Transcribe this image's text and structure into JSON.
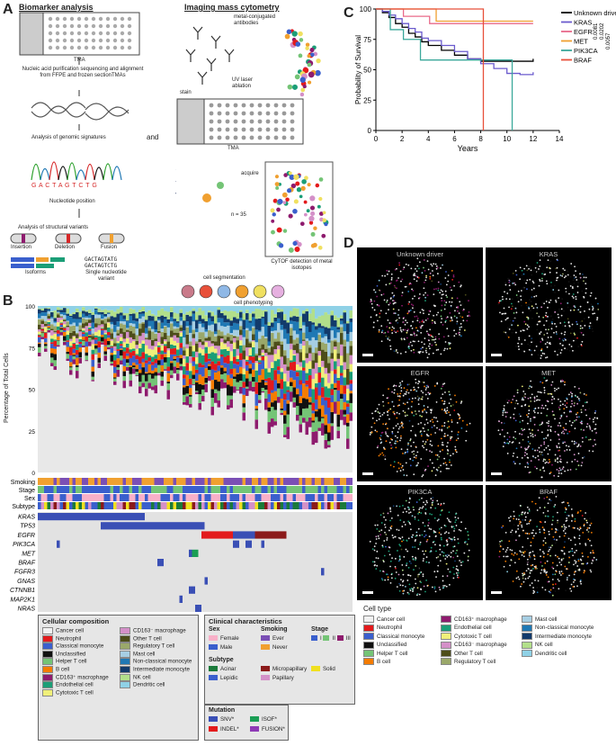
{
  "panels": {
    "a": "A",
    "b": "B",
    "c": "C",
    "d": "D"
  },
  "panelA": {
    "biomarker_title": "Biomarker analysis",
    "tma": "TMA",
    "nucleic_text": "Nucleic acid purification sequencing and alignment from FFPE and frozen sectionTMAs",
    "genomic": "Analysis of genomic signatures",
    "sequence": "G A C T A G T C T G",
    "nucleotide": "Nucleotide position",
    "structural": "Analysis of structural variants",
    "insertion": "Insertion",
    "deletion": "Deletion",
    "fusion": "Fusion",
    "isoforms": "Isoforms",
    "snv_seq1": "GACTAGTATG",
    "snv_seq2": "GACTAGTCTG",
    "snv_label": "Single nucleotide variant",
    "and": "and",
    "imc_title": "Imaging mass cytometry",
    "antibodies": "metal-conjugated antibodies",
    "stain": "stain",
    "uv": "UV laser ablation",
    "tma2": "TMA",
    "acquire": "acquire",
    "n35": "n = 35",
    "cytof": "CyTOF detection of metal isotopes",
    "segmentation": "cell segmentation",
    "phenotyping": "cell phenotyping"
  },
  "panelB": {
    "ylabel": "Percentage of Total Cells",
    "yticks": [
      "100",
      "75",
      "50",
      "25",
      "0"
    ],
    "tracks": [
      "Smoking",
      "Stage",
      "Sex",
      "Subtype"
    ],
    "genes": [
      "KRAS",
      "TP53",
      "EGFR",
      "PIK3CA",
      "MET",
      "BRAF",
      "FGFR3",
      "GNAS",
      "CTNNB1",
      "MAP2K1",
      "NRAS",
      "RAF1",
      "FGFR2"
    ],
    "legend_comp_title": "Cellular composition",
    "legend_clin_title": "Clinical characteristics",
    "sex_title": "Sex",
    "smoking_title": "Smoking",
    "stage_title": "Stage",
    "sex": [
      "Female",
      "Male"
    ],
    "smoking": [
      "Ever",
      "Never"
    ],
    "stage": [
      "I",
      "II",
      "III"
    ],
    "subtype_title": "Subtype",
    "subtype": [
      "Acinar",
      "Lepidic",
      "Micropapillary",
      "Papillary",
      "Solid"
    ],
    "mutation_title": "Mutation",
    "mutation": [
      "SNV*",
      "ISOF*",
      "INDEL*",
      "FUSION*"
    ]
  },
  "cell_types": [
    {
      "name": "Cancer cell",
      "color": "#f2f2f2"
    },
    {
      "name": "Neutrophil",
      "color": "#e31a1c"
    },
    {
      "name": "Classical monocyte",
      "color": "#3a5fcd"
    },
    {
      "name": "Unclassified",
      "color": "#111111"
    },
    {
      "name": "Helper T cell",
      "color": "#74c476"
    },
    {
      "name": "B cell",
      "color": "#f57c00"
    },
    {
      "name": "CD163⁺ macrophage",
      "color": "#8e1b6e"
    },
    {
      "name": "Endothelial cell",
      "color": "#1b9e77"
    },
    {
      "name": "Cytotoxic T cell",
      "color": "#f0f07a"
    },
    {
      "name": "CD163⁻ macrophage",
      "color": "#d490c8"
    },
    {
      "name": "Other T cell",
      "color": "#4d4d1a"
    },
    {
      "name": "Regulatory T cell",
      "color": "#9aa86a"
    },
    {
      "name": "Mast cell",
      "color": "#a6cee3"
    },
    {
      "name": "Non-classical monocyte",
      "color": "#1f78b4"
    },
    {
      "name": "Intermediate monocyte",
      "color": "#123a6b"
    },
    {
      "name": "NK cell",
      "color": "#b2df8a"
    },
    {
      "name": "Dendritic cell",
      "color": "#8fd1e6"
    }
  ],
  "chart_data": {
    "type": "line",
    "xlabel": "Years",
    "ylabel": "Probability of Survival",
    "xlim": [
      0,
      14
    ],
    "ylim": [
      0,
      100
    ],
    "xticks": [
      0,
      2,
      4,
      6,
      8,
      10,
      12,
      14
    ],
    "yticks": [
      0,
      25,
      50,
      75,
      100
    ],
    "pvalues": [
      "0.0057",
      "0.0202",
      "0.0081"
    ],
    "series": [
      {
        "name": "Unknown driver",
        "color": "#000000",
        "points": [
          [
            0,
            100
          ],
          [
            0.5,
            97
          ],
          [
            1,
            93
          ],
          [
            1.5,
            88
          ],
          [
            2,
            85
          ],
          [
            2.5,
            80
          ],
          [
            3,
            77
          ],
          [
            3.5,
            73
          ],
          [
            4,
            70
          ],
          [
            5,
            66
          ],
          [
            6,
            62
          ],
          [
            7,
            59
          ],
          [
            8,
            57
          ],
          [
            9,
            57
          ],
          [
            10,
            57
          ],
          [
            11,
            57
          ],
          [
            12,
            59
          ]
        ]
      },
      {
        "name": "KRAS",
        "color": "#6a5acd",
        "points": [
          [
            0,
            100
          ],
          [
            0.5,
            98
          ],
          [
            1,
            95
          ],
          [
            1.5,
            92
          ],
          [
            2,
            88
          ],
          [
            2.5,
            84
          ],
          [
            3,
            81
          ],
          [
            3.5,
            76
          ],
          [
            4,
            74
          ],
          [
            5,
            70
          ],
          [
            6,
            65
          ],
          [
            7,
            59
          ],
          [
            8,
            55
          ],
          [
            9,
            51
          ],
          [
            10,
            47
          ],
          [
            11,
            46
          ],
          [
            12,
            48
          ]
        ]
      },
      {
        "name": "EGFR",
        "color": "#e86a8a",
        "points": [
          [
            0,
            100
          ],
          [
            2,
            100
          ],
          [
            2.1,
            94
          ],
          [
            4,
            94
          ],
          [
            4.1,
            88
          ],
          [
            12,
            88
          ]
        ]
      },
      {
        "name": "MET",
        "color": "#f0a030",
        "points": [
          [
            0,
            100
          ],
          [
            4.5,
            100
          ],
          [
            4.6,
            90
          ],
          [
            12,
            90
          ]
        ]
      },
      {
        "name": "PIK3CA",
        "color": "#3aa89a",
        "points": [
          [
            0,
            100
          ],
          [
            1,
            100
          ],
          [
            1.1,
            83
          ],
          [
            2,
            83
          ],
          [
            2.1,
            75
          ],
          [
            3.3,
            75
          ],
          [
            3.4,
            58
          ],
          [
            10.3,
            58
          ],
          [
            10.4,
            0
          ]
        ]
      },
      {
        "name": "BRAF",
        "color": "#e8503a",
        "points": [
          [
            0,
            100
          ],
          [
            8.1,
            100
          ],
          [
            8.2,
            0
          ]
        ]
      }
    ]
  },
  "panelD": {
    "tiles": [
      "Unknown driver",
      "KRAS",
      "EGFR",
      "MET",
      "PIK3CA",
      "BRAF"
    ],
    "legend_title": "Cell type"
  }
}
